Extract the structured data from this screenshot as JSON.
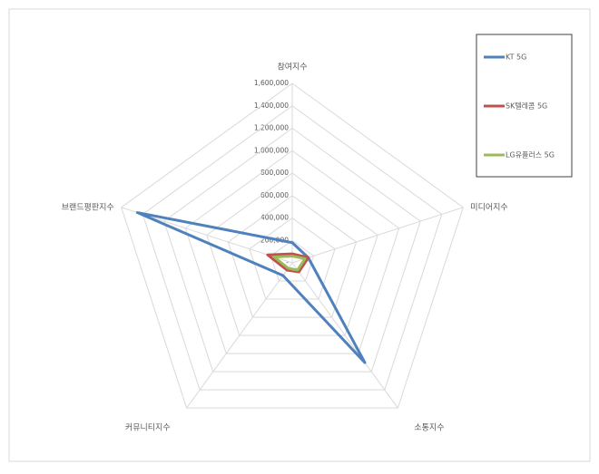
{
  "chart_data": {
    "type": "radar",
    "categories": [
      "참여지수",
      "미디어지수",
      "소통지수",
      "커뮤니티지수",
      "브랜드평판지수"
    ],
    "series": [
      {
        "name": "KT 5G",
        "color": "#4f81bd",
        "values": [
          180000,
          150000,
          1100000,
          140000,
          1450000
        ]
      },
      {
        "name": "SK텔레콤 5G",
        "color": "#c0504d",
        "values": [
          80000,
          150000,
          100000,
          80000,
          230000
        ]
      },
      {
        "name": "LG유플러스 5G",
        "color": "#9bbb59",
        "values": [
          60000,
          120000,
          80000,
          60000,
          170000
        ]
      }
    ],
    "ylim": [
      0,
      1600000
    ],
    "yticks": [
      {
        "value": 0,
        "label": "-"
      },
      {
        "value": 200000,
        "label": "200,000"
      },
      {
        "value": 400000,
        "label": "400,000"
      },
      {
        "value": 600000,
        "label": "600,000"
      },
      {
        "value": 800000,
        "label": "800,000"
      },
      {
        "value": 1000000,
        "label": "1,000,000"
      },
      {
        "value": 1200000,
        "label": "1,200,000"
      },
      {
        "value": 1400000,
        "label": "1,400,000"
      },
      {
        "value": 1600000,
        "label": "1,600,000"
      }
    ],
    "grid": true,
    "legend": "right"
  }
}
